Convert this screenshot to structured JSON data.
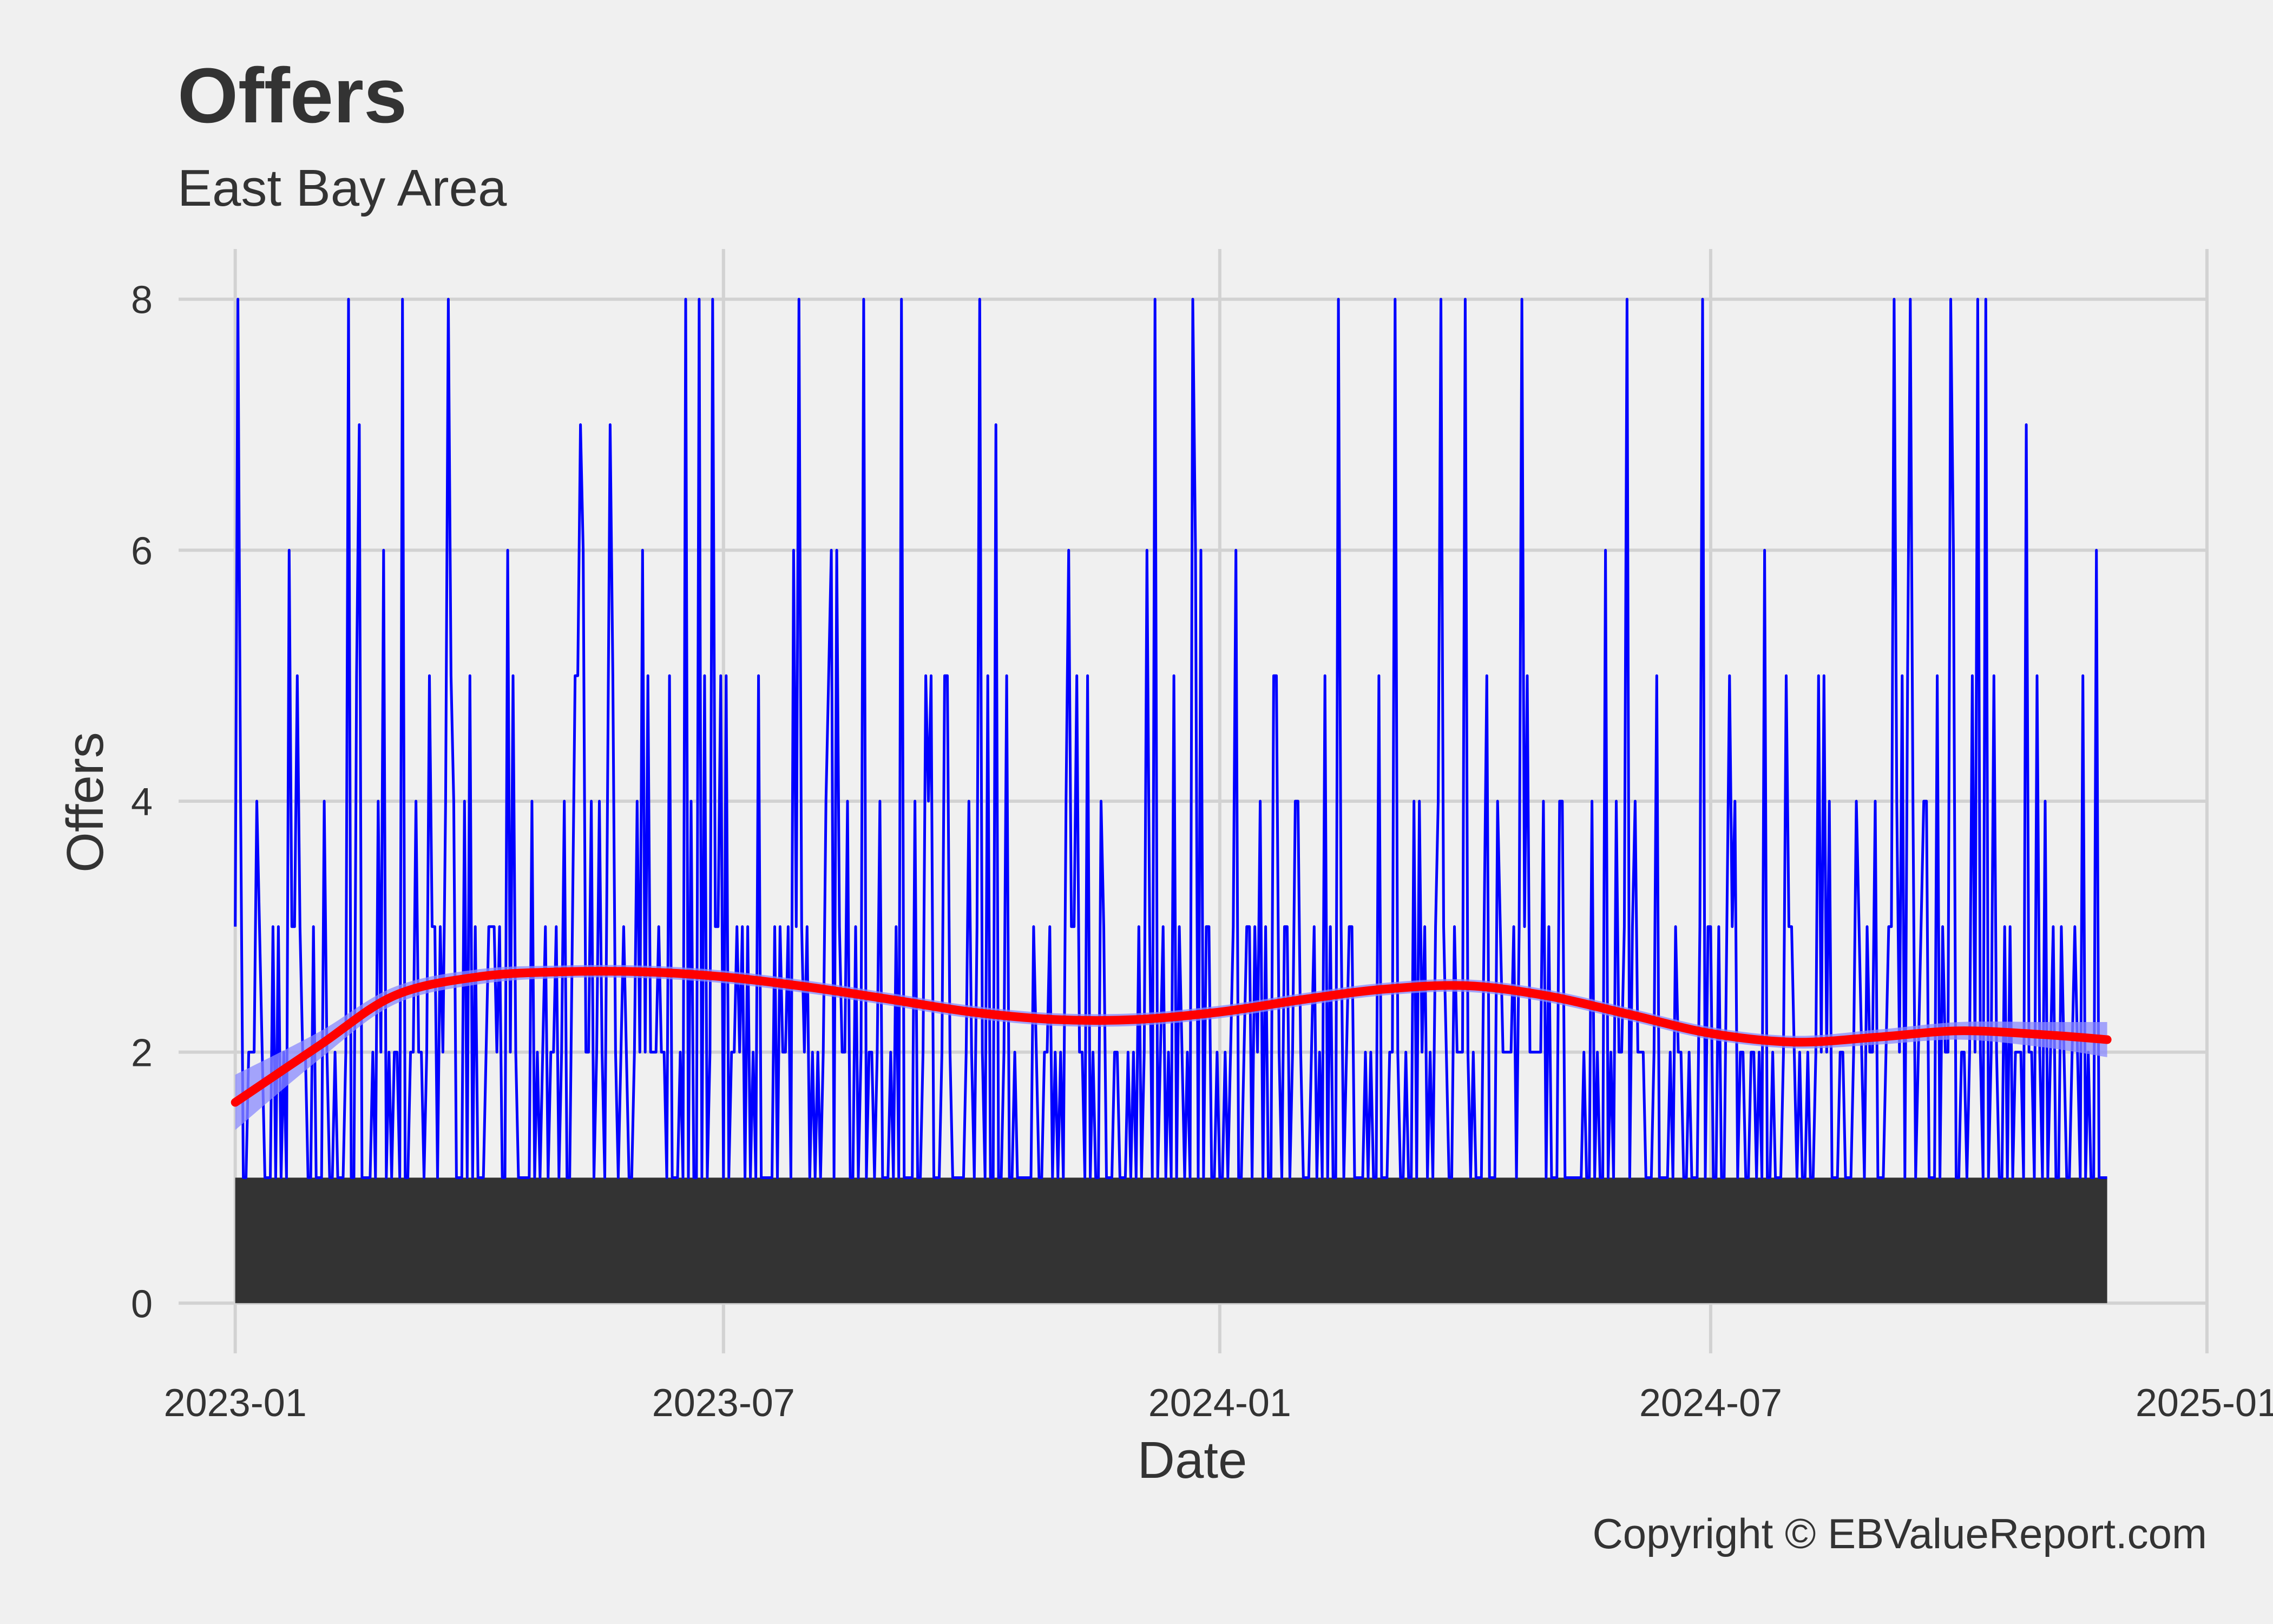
{
  "chart_data": {
    "type": "line",
    "title": "Offers",
    "subtitle": "East Bay  Area",
    "xlabel": "Date",
    "ylabel": "Offers",
    "caption": "Copyright  © EBValueReport.com",
    "x_range": [
      "2022-12-11",
      "2025-01-01"
    ],
    "ylim": [
      -0.4,
      8.4
    ],
    "x_ticks": [
      "2023-01-01",
      "2023-07-01",
      "2024-01-01",
      "2024-07-01",
      "2025-01-01"
    ],
    "x_tick_labels": [
      "2023-01",
      "2023-07",
      "2024-01",
      "2024-07",
      "2025-01"
    ],
    "y_ticks": [
      0,
      2,
      4,
      6,
      8
    ],
    "grid": true,
    "legend": "none",
    "colors": {
      "background": "#f0f0f0",
      "grid": "#d2d2d2",
      "area": "#333333",
      "offers_line": "#0000ff",
      "smooth_line": "#ff0000",
      "smooth_ribbon": "#8a8aff",
      "text": "#333333"
    },
    "date_start": "2023-01-01",
    "date_end": "2024-11-25",
    "area_baseline": 1,
    "offers_peaks": [
      {
        "date": "2023-01-02",
        "value": 8
      },
      {
        "date": "2023-01-09",
        "value": 4
      },
      {
        "date": "2023-02-12",
        "value": 8
      },
      {
        "date": "2023-02-16",
        "value": 7
      },
      {
        "date": "2023-03-04",
        "value": 8
      },
      {
        "date": "2023-03-21",
        "value": 8
      },
      {
        "date": "2023-04-12",
        "value": 6
      },
      {
        "date": "2023-05-09",
        "value": 7
      },
      {
        "date": "2023-05-20",
        "value": 7
      },
      {
        "date": "2023-06-17",
        "value": 8
      },
      {
        "date": "2023-06-22",
        "value": 8
      },
      {
        "date": "2023-06-27",
        "value": 8
      },
      {
        "date": "2023-07-29",
        "value": 8
      },
      {
        "date": "2023-08-22",
        "value": 8
      },
      {
        "date": "2023-09-05",
        "value": 8
      },
      {
        "date": "2023-10-04",
        "value": 8
      },
      {
        "date": "2023-10-10",
        "value": 7
      },
      {
        "date": "2023-12-08",
        "value": 8
      },
      {
        "date": "2023-12-22",
        "value": 8
      },
      {
        "date": "2024-02-14",
        "value": 8
      },
      {
        "date": "2024-03-06",
        "value": 8
      },
      {
        "date": "2024-03-23",
        "value": 8
      },
      {
        "date": "2024-04-01",
        "value": 8
      },
      {
        "date": "2024-04-22",
        "value": 8
      },
      {
        "date": "2024-05-31",
        "value": 8
      },
      {
        "date": "2024-06-28",
        "value": 8
      },
      {
        "date": "2024-09-07",
        "value": 8
      },
      {
        "date": "2024-09-13",
        "value": 8
      },
      {
        "date": "2024-09-28",
        "value": 8
      },
      {
        "date": "2024-10-08",
        "value": 8
      },
      {
        "date": "2024-10-11",
        "value": 8
      },
      {
        "date": "2024-10-26",
        "value": 7
      },
      {
        "date": "2024-11-21",
        "value": 6
      }
    ],
    "smooth_series": {
      "x": [
        "2023-01-01",
        "2023-02-01",
        "2023-03-01",
        "2023-04-01",
        "2023-05-01",
        "2023-06-01",
        "2023-07-01",
        "2023-08-01",
        "2023-09-01",
        "2023-10-01",
        "2023-11-01",
        "2023-12-01",
        "2024-01-01",
        "2024-02-01",
        "2024-03-01",
        "2024-04-01",
        "2024-05-01",
        "2024-06-01",
        "2024-07-01",
        "2024-08-01",
        "2024-09-01",
        "2024-10-01",
        "2024-11-01",
        "2024-11-25"
      ],
      "y": [
        1.6,
        2.05,
        2.45,
        2.6,
        2.64,
        2.64,
        2.6,
        2.52,
        2.42,
        2.32,
        2.26,
        2.26,
        2.32,
        2.42,
        2.5,
        2.53,
        2.45,
        2.3,
        2.15,
        2.08,
        2.12,
        2.17,
        2.14,
        2.1
      ],
      "ribbon_halfwidth": [
        0.22,
        0.11,
        0.07,
        0.06,
        0.05,
        0.05,
        0.05,
        0.05,
        0.05,
        0.05,
        0.05,
        0.05,
        0.05,
        0.05,
        0.05,
        0.05,
        0.05,
        0.05,
        0.05,
        0.05,
        0.06,
        0.07,
        0.1,
        0.14
      ]
    }
  }
}
